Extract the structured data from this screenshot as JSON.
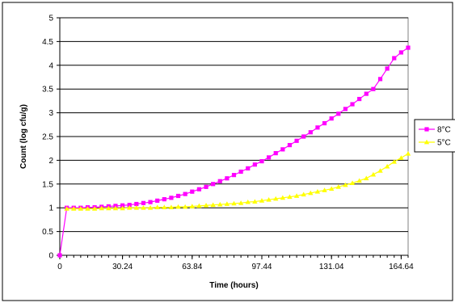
{
  "chart_data": {
    "type": "line",
    "title": "",
    "xlabel": "Time (hours)",
    "ylabel": "Count (log cfu/g)",
    "xlim": [
      0,
      168
    ],
    "ylim": [
      0,
      5
    ],
    "x_ticks": [
      0,
      30.24,
      63.84,
      97.44,
      131.04,
      164.64
    ],
    "x_tick_labels": [
      "0",
      "30.24",
      "63.84",
      "97.44",
      "131.04",
      "164.64"
    ],
    "y_ticks": [
      0,
      0.5,
      1,
      1.5,
      2,
      2.5,
      3,
      3.5,
      4,
      4.5,
      5
    ],
    "y_tick_labels": [
      "0",
      "0.5",
      "1",
      "1.5",
      "2",
      "2.5",
      "3",
      "3.5",
      "4",
      "4.5",
      "5"
    ],
    "grid": "horizontal",
    "legend_position": "right",
    "series": [
      {
        "name": "8°C",
        "color": "#ff00ff",
        "marker": "square",
        "x": [
          0,
          3.36,
          6.72,
          10.08,
          13.44,
          16.8,
          20.16,
          23.52,
          26.88,
          30.24,
          33.6,
          36.96,
          40.32,
          43.68,
          47.04,
          50.4,
          53.76,
          57.12,
          60.48,
          63.84,
          67.2,
          70.56,
          73.92,
          77.28,
          80.64,
          84,
          87.36,
          90.72,
          94.08,
          97.44,
          100.8,
          104.16,
          107.52,
          110.88,
          114.24,
          117.6,
          120.96,
          124.32,
          127.68,
          131.04,
          134.4,
          137.76,
          141.12,
          144.48,
          147.84,
          151.2,
          154.56,
          157.92,
          161.28,
          164.64,
          168
        ],
        "y": [
          0,
          1.0,
          1.0,
          1.0,
          1.01,
          1.01,
          1.02,
          1.03,
          1.04,
          1.05,
          1.06,
          1.08,
          1.1,
          1.12,
          1.15,
          1.18,
          1.21,
          1.25,
          1.29,
          1.34,
          1.39,
          1.44,
          1.5,
          1.56,
          1.62,
          1.69,
          1.76,
          1.83,
          1.91,
          1.98,
          2.06,
          2.15,
          2.23,
          2.32,
          2.41,
          2.5,
          2.59,
          2.69,
          2.78,
          2.88,
          2.98,
          3.08,
          3.18,
          3.29,
          3.4,
          3.5,
          3.71,
          3.93,
          4.15,
          4.27,
          4.37
        ]
      },
      {
        "name": "5°C",
        "color": "#ffff00",
        "marker": "triangle",
        "x": [
          3.36,
          6.72,
          10.08,
          13.44,
          16.8,
          20.16,
          23.52,
          26.88,
          30.24,
          33.6,
          36.96,
          40.32,
          43.68,
          47.04,
          50.4,
          53.76,
          57.12,
          60.48,
          63.84,
          67.2,
          70.56,
          73.92,
          77.28,
          80.64,
          84,
          87.36,
          90.72,
          94.08,
          97.44,
          100.8,
          104.16,
          107.52,
          110.88,
          114.24,
          117.6,
          120.96,
          124.32,
          127.68,
          131.04,
          134.4,
          137.76,
          141.12,
          144.48,
          147.84,
          151.2,
          154.56,
          157.92,
          161.28,
          164.64,
          168
        ],
        "y": [
          0.98,
          0.98,
          0.98,
          0.98,
          0.98,
          0.99,
          0.99,
          0.99,
          0.99,
          1.0,
          1.0,
          1.0,
          1.0,
          1.01,
          1.01,
          1.01,
          1.02,
          1.02,
          1.03,
          1.04,
          1.05,
          1.06,
          1.07,
          1.08,
          1.09,
          1.1,
          1.12,
          1.13,
          1.15,
          1.17,
          1.19,
          1.21,
          1.23,
          1.25,
          1.28,
          1.31,
          1.34,
          1.37,
          1.4,
          1.44,
          1.48,
          1.52,
          1.57,
          1.62,
          1.7,
          1.78,
          1.87,
          1.97,
          2.05,
          2.14
        ]
      }
    ]
  }
}
